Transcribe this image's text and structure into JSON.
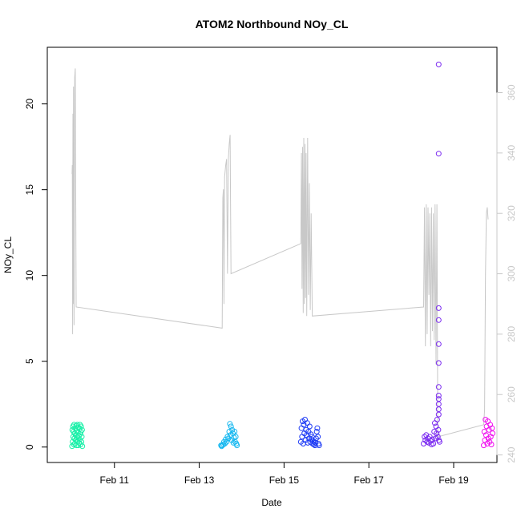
{
  "chart_data": {
    "type": "scatter",
    "title": "ATOM2 Northbound NOy_CL",
    "xlabel": "Date",
    "ylabel": "NOy_CL",
    "xlim": [
      "2017-02-09T10:00",
      "2017-02-20T00:30"
    ],
    "ylim": [
      -0.9,
      23.3
    ],
    "y2lim": [
      237.5,
      375
    ],
    "x_ticks": [
      {
        "label": "Feb 11",
        "date": "2017-02-11"
      },
      {
        "label": "Feb 13",
        "date": "2017-02-13"
      },
      {
        "label": "Feb 15",
        "date": "2017-02-15"
      },
      {
        "label": "Feb 17",
        "date": "2017-02-17"
      },
      {
        "label": "Feb 19",
        "date": "2017-02-19"
      }
    ],
    "y_ticks": [
      "0",
      "5",
      "10",
      "15",
      "20"
    ],
    "y2_ticks": [
      "240",
      "260",
      "280",
      "300",
      "320",
      "340",
      "360"
    ],
    "grid": false,
    "legend": "none",
    "colors": {
      "flight1": "#19f0a8",
      "flight2": "#17b8f0",
      "flight3": "#1f3cf5",
      "flight4": "#7b2af0",
      "flight5": "#f012f0",
      "secondary_line": "#c8c8c8",
      "secondary_axis": "#c8c8c8"
    },
    "series": [
      {
        "color": "#19f0a8",
        "marker": "open-circle",
        "points": [
          [
            "2017-02-10T00:00",
            0.05
          ],
          [
            "2017-02-10T00:10",
            1.0
          ],
          [
            "2017-02-10T00:20",
            0.3
          ],
          [
            "2017-02-10T00:30",
            1.2
          ],
          [
            "2017-02-10T00:40",
            0.6
          ],
          [
            "2017-02-10T00:50",
            0.9
          ],
          [
            "2017-02-10T01:00",
            0.15
          ],
          [
            "2017-02-10T01:10",
            1.3
          ],
          [
            "2017-02-10T01:20",
            0.5
          ],
          [
            "2017-02-10T01:30",
            0.8
          ],
          [
            "2017-02-10T01:40",
            0.2
          ],
          [
            "2017-02-10T01:50",
            1.1
          ],
          [
            "2017-02-10T02:00",
            0.7
          ],
          [
            "2017-02-10T02:10",
            0.4
          ],
          [
            "2017-02-10T02:20",
            1.25
          ],
          [
            "2017-02-10T02:30",
            0.1
          ],
          [
            "2017-02-10T02:40",
            0.95
          ],
          [
            "2017-02-10T02:50",
            0.55
          ],
          [
            "2017-02-10T03:00",
            1.3
          ],
          [
            "2017-02-10T03:10",
            0.35
          ],
          [
            "2017-02-10T03:20",
            0.85
          ],
          [
            "2017-02-10T03:30",
            0.1
          ],
          [
            "2017-02-10T03:40",
            1.15
          ],
          [
            "2017-02-10T03:50",
            0.65
          ],
          [
            "2017-02-10T04:00",
            0.25
          ],
          [
            "2017-02-10T04:10",
            1.05
          ],
          [
            "2017-02-10T04:20",
            0.45
          ],
          [
            "2017-02-10T04:30",
            1.3
          ],
          [
            "2017-02-10T04:40",
            0.75
          ],
          [
            "2017-02-10T04:50",
            0.15
          ],
          [
            "2017-02-10T05:00",
            0.9
          ],
          [
            "2017-02-10T05:10",
            1.2
          ],
          [
            "2017-02-10T05:20",
            0.3
          ],
          [
            "2017-02-10T05:30",
            0.6
          ],
          [
            "2017-02-10T05:40",
            1.0
          ],
          [
            "2017-02-10T05:50",
            0.05
          ]
        ]
      },
      {
        "color": "#17b8f0",
        "marker": "open-circle",
        "points": [
          [
            "2017-02-13T12:20",
            0.1
          ],
          [
            "2017-02-13T12:40",
            0.05
          ],
          [
            "2017-02-13T13:00",
            0.1
          ],
          [
            "2017-02-13T13:40",
            0.15
          ],
          [
            "2017-02-13T14:00",
            0.3
          ],
          [
            "2017-02-13T14:30",
            0.2
          ],
          [
            "2017-02-13T15:00",
            0.45
          ],
          [
            "2017-02-13T15:30",
            0.3
          ],
          [
            "2017-02-13T16:00",
            0.6
          ],
          [
            "2017-02-13T16:30",
            0.5
          ],
          [
            "2017-02-13T17:00",
            0.9
          ],
          [
            "2017-02-13T17:20",
            1.35
          ],
          [
            "2017-02-13T17:40",
            0.7
          ],
          [
            "2017-02-13T18:00",
            1.2
          ],
          [
            "2017-02-13T18:20",
            0.4
          ],
          [
            "2017-02-13T18:40",
            1.0
          ],
          [
            "2017-02-13T19:00",
            0.8
          ],
          [
            "2017-02-13T19:20",
            0.25
          ],
          [
            "2017-02-13T19:40",
            0.55
          ],
          [
            "2017-02-13T20:00",
            0.9
          ],
          [
            "2017-02-13T20:20",
            0.3
          ],
          [
            "2017-02-13T20:40",
            0.6
          ],
          [
            "2017-02-13T21:00",
            0.2
          ],
          [
            "2017-02-13T21:20",
            0.1
          ]
        ]
      },
      {
        "color": "#1f3cf5",
        "marker": "open-circle",
        "points": [
          [
            "2017-02-15T09:30",
            0.3
          ],
          [
            "2017-02-15T09:50",
            1.1
          ],
          [
            "2017-02-15T10:10",
            0.6
          ],
          [
            "2017-02-15T10:30",
            1.5
          ],
          [
            "2017-02-15T10:50",
            0.2
          ],
          [
            "2017-02-15T11:10",
            1.3
          ],
          [
            "2017-02-15T11:30",
            0.8
          ],
          [
            "2017-02-15T11:50",
            1.6
          ],
          [
            "2017-02-15T12:10",
            0.4
          ],
          [
            "2017-02-15T12:30",
            1.0
          ],
          [
            "2017-02-15T12:50",
            0.7
          ],
          [
            "2017-02-15T13:10",
            1.4
          ],
          [
            "2017-02-15T13:30",
            0.25
          ],
          [
            "2017-02-15T13:50",
            0.9
          ],
          [
            "2017-02-15T14:10",
            0.5
          ],
          [
            "2017-02-15T14:30",
            1.2
          ],
          [
            "2017-02-15T14:50",
            0.3
          ],
          [
            "2017-02-15T15:10",
            0.75
          ],
          [
            "2017-02-15T15:30",
            0.45
          ],
          [
            "2017-02-15T15:50",
            0.6
          ],
          [
            "2017-02-15T16:10",
            0.2
          ],
          [
            "2017-02-15T16:30",
            0.35
          ],
          [
            "2017-02-15T16:50",
            0.15
          ],
          [
            "2017-02-15T17:10",
            0.3
          ],
          [
            "2017-02-15T17:30",
            0.1
          ],
          [
            "2017-02-15T17:50",
            0.25
          ],
          [
            "2017-02-15T18:10",
            0.5
          ],
          [
            "2017-02-15T18:30",
            0.9
          ],
          [
            "2017-02-15T18:50",
            1.1
          ],
          [
            "2017-02-15T19:10",
            0.6
          ],
          [
            "2017-02-15T19:30",
            0.2
          ],
          [
            "2017-02-15T19:50",
            0.1
          ]
        ]
      },
      {
        "color": "#7b2af0",
        "marker": "open-circle",
        "points": [
          [
            "2017-02-18T07:00",
            0.2
          ],
          [
            "2017-02-18T07:30",
            0.6
          ],
          [
            "2017-02-18T08:00",
            0.4
          ],
          [
            "2017-02-18T08:30",
            0.7
          ],
          [
            "2017-02-18T09:00",
            0.3
          ],
          [
            "2017-02-18T09:30",
            0.5
          ],
          [
            "2017-02-18T10:00",
            0.25
          ],
          [
            "2017-02-18T10:30",
            0.6
          ],
          [
            "2017-02-18T11:00",
            0.35
          ],
          [
            "2017-02-18T11:30",
            0.15
          ],
          [
            "2017-02-18T12:00",
            0.45
          ],
          [
            "2017-02-18T12:30",
            0.2
          ],
          [
            "2017-02-18T13:00",
            0.9
          ],
          [
            "2017-02-18T13:20",
            1.4
          ],
          [
            "2017-02-18T13:40",
            0.5
          ],
          [
            "2017-02-18T14:00",
            1.2
          ],
          [
            "2017-02-18T14:20",
            0.8
          ],
          [
            "2017-02-18T14:40",
            1.6
          ],
          [
            "2017-02-18T15:00",
            0.6
          ],
          [
            "2017-02-18T15:20",
            1.0
          ],
          [
            "2017-02-18T15:40",
            0.4
          ],
          [
            "2017-02-18T16:00",
            0.3
          ],
          [
            "2017-02-18T15:30",
            22.3
          ],
          [
            "2017-02-18T15:30",
            17.1
          ],
          [
            "2017-02-18T15:30",
            8.1
          ],
          [
            "2017-02-18T15:30",
            7.4
          ],
          [
            "2017-02-18T15:30",
            6.0
          ],
          [
            "2017-02-18T15:30",
            4.9
          ],
          [
            "2017-02-18T15:30",
            3.5
          ],
          [
            "2017-02-18T15:30",
            3.0
          ],
          [
            "2017-02-18T15:30",
            2.8
          ],
          [
            "2017-02-18T15:30",
            2.5
          ],
          [
            "2017-02-18T15:30",
            2.2
          ],
          [
            "2017-02-18T15:30",
            1.9
          ]
        ]
      },
      {
        "color": "#f012f0",
        "marker": "open-circle",
        "points": [
          [
            "2017-02-19T17:00",
            0.1
          ],
          [
            "2017-02-19T17:20",
            0.9
          ],
          [
            "2017-02-19T17:40",
            0.4
          ],
          [
            "2017-02-19T18:00",
            1.6
          ],
          [
            "2017-02-19T18:20",
            0.7
          ],
          [
            "2017-02-19T18:40",
            1.2
          ],
          [
            "2017-02-19T19:00",
            0.2
          ],
          [
            "2017-02-19T19:20",
            1.5
          ],
          [
            "2017-02-19T19:40",
            0.5
          ],
          [
            "2017-02-19T20:00",
            1.0
          ],
          [
            "2017-02-19T20:20",
            0.3
          ],
          [
            "2017-02-19T20:40",
            1.3
          ],
          [
            "2017-02-19T21:00",
            0.6
          ],
          [
            "2017-02-19T21:20",
            0.15
          ],
          [
            "2017-02-19T21:40",
            1.1
          ],
          [
            "2017-02-19T22:00",
            0.8
          ]
        ]
      }
    ],
    "secondary_series": {
      "axis": "right",
      "color": "#c8c8c8",
      "type": "line",
      "points": [
        [
          "2017-02-10T00:00",
          333
        ],
        [
          "2017-02-10T00:10",
          336
        ],
        [
          "2017-02-10T00:20",
          280
        ],
        [
          "2017-02-10T00:30",
          353
        ],
        [
          "2017-02-10T00:40",
          290
        ],
        [
          "2017-02-10T00:50",
          362
        ],
        [
          "2017-02-10T01:10",
          283
        ],
        [
          "2017-02-10T01:30",
          365
        ],
        [
          "2017-02-10T01:50",
          368
        ],
        [
          "2017-02-10T02:20",
          289
        ],
        [
          "2017-02-13T13:00",
          282
        ],
        [
          "2017-02-13T13:20",
          325
        ],
        [
          "2017-02-13T13:40",
          328
        ],
        [
          "2017-02-13T14:00",
          290
        ],
        [
          "2017-02-13T14:20",
          332
        ],
        [
          "2017-02-13T15:00",
          336
        ],
        [
          "2017-02-13T15:30",
          338
        ],
        [
          "2017-02-13T16:00",
          300
        ],
        [
          "2017-02-13T16:30",
          338
        ],
        [
          "2017-02-13T17:00",
          343
        ],
        [
          "2017-02-13T17:30",
          346
        ],
        [
          "2017-02-13T18:00",
          300
        ],
        [
          "2017-02-15T09:30",
          310
        ],
        [
          "2017-02-15T09:50",
          340
        ],
        [
          "2017-02-15T10:10",
          295
        ],
        [
          "2017-02-15T10:30",
          342
        ],
        [
          "2017-02-15T10:50",
          287
        ],
        [
          "2017-02-15T11:10",
          345
        ],
        [
          "2017-02-15T11:30",
          290
        ],
        [
          "2017-02-15T11:50",
          343
        ],
        [
          "2017-02-15T12:10",
          292
        ],
        [
          "2017-02-15T12:30",
          340
        ],
        [
          "2017-02-15T12:50",
          286
        ],
        [
          "2017-02-15T13:20",
          345
        ],
        [
          "2017-02-15T13:50",
          293
        ],
        [
          "2017-02-15T14:20",
          330
        ],
        [
          "2017-02-15T14:50",
          288
        ],
        [
          "2017-02-15T15:20",
          320
        ],
        [
          "2017-02-15T16:00",
          286
        ],
        [
          "2017-02-18T07:00",
          289
        ],
        [
          "2017-02-18T07:30",
          322
        ],
        [
          "2017-02-18T08:00",
          276
        ],
        [
          "2017-02-18T08:30",
          323
        ],
        [
          "2017-02-18T09:00",
          280
        ],
        [
          "2017-02-18T09:30",
          322
        ],
        [
          "2017-02-18T10:00",
          293
        ],
        [
          "2017-02-18T10:30",
          320
        ],
        [
          "2017-02-18T11:00",
          276
        ],
        [
          "2017-02-18T11:30",
          322
        ],
        [
          "2017-02-18T12:00",
          281
        ],
        [
          "2017-02-18T12:30",
          320
        ],
        [
          "2017-02-18T13:00",
          278
        ],
        [
          "2017-02-18T13:30",
          323
        ],
        [
          "2017-02-18T14:00",
          270
        ],
        [
          "2017-02-18T14:30",
          323
        ],
        [
          "2017-02-18T15:00",
          246
        ],
        [
          "2017-02-19T17:00",
          250
        ],
        [
          "2017-02-19T17:30",
          255
        ],
        [
          "2017-02-19T18:00",
          300
        ],
        [
          "2017-02-19T18:30",
          320
        ],
        [
          "2017-02-19T19:00",
          322
        ],
        [
          "2017-02-19T19:30",
          318
        ]
      ]
    }
  }
}
